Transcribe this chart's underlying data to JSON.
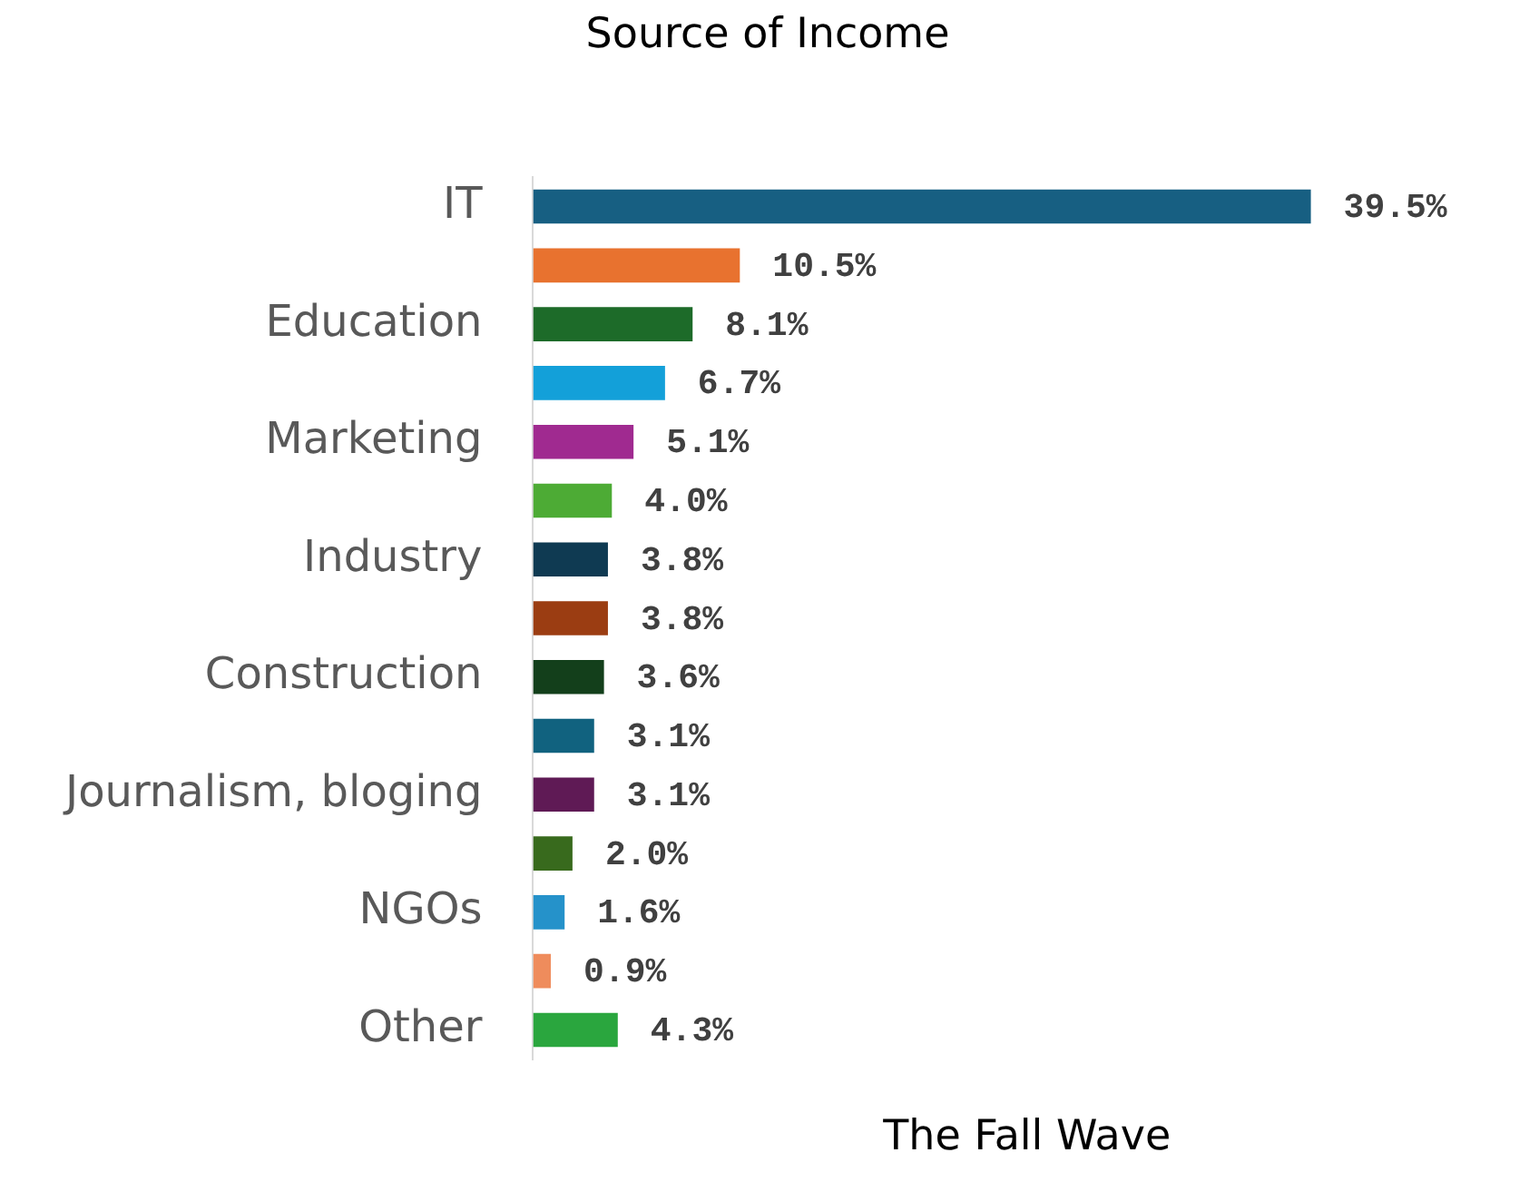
{
  "chart_data": {
    "type": "bar",
    "orientation": "horizontal",
    "title": "Source of Income",
    "xlabel": "The Fall Wave",
    "categories": [
      "IT",
      null,
      "Education",
      null,
      "Marketing",
      null,
      "Industry",
      null,
      "Construction",
      null,
      "Journalism, bloging",
      null,
      "NGOs",
      null,
      "Other"
    ],
    "values": [
      39.5,
      10.5,
      8.1,
      6.7,
      5.1,
      4.0,
      3.8,
      3.8,
      3.6,
      3.1,
      3.1,
      2.0,
      1.6,
      0.9,
      4.3
    ],
    "value_labels": [
      "39.5%",
      "10.5%",
      "8.1%",
      "6.7%",
      "5.1%",
      "4.0%",
      "3.8%",
      "3.8%",
      "3.6%",
      "3.1%",
      "3.1%",
      "2.0%",
      "1.6%",
      "0.9%",
      "4.3%"
    ],
    "colors": [
      "#175f82",
      "#e8722f",
      "#1d6b29",
      "#13a0d9",
      "#a02a90",
      "#4dab35",
      "#0f3a52",
      "#9b3d12",
      "#133f1b",
      "#11627f",
      "#5f1a55",
      "#386a1d",
      "#2592ca",
      "#ef8c5c",
      "#2aa63e"
    ],
    "grid": false,
    "legend": false
  }
}
